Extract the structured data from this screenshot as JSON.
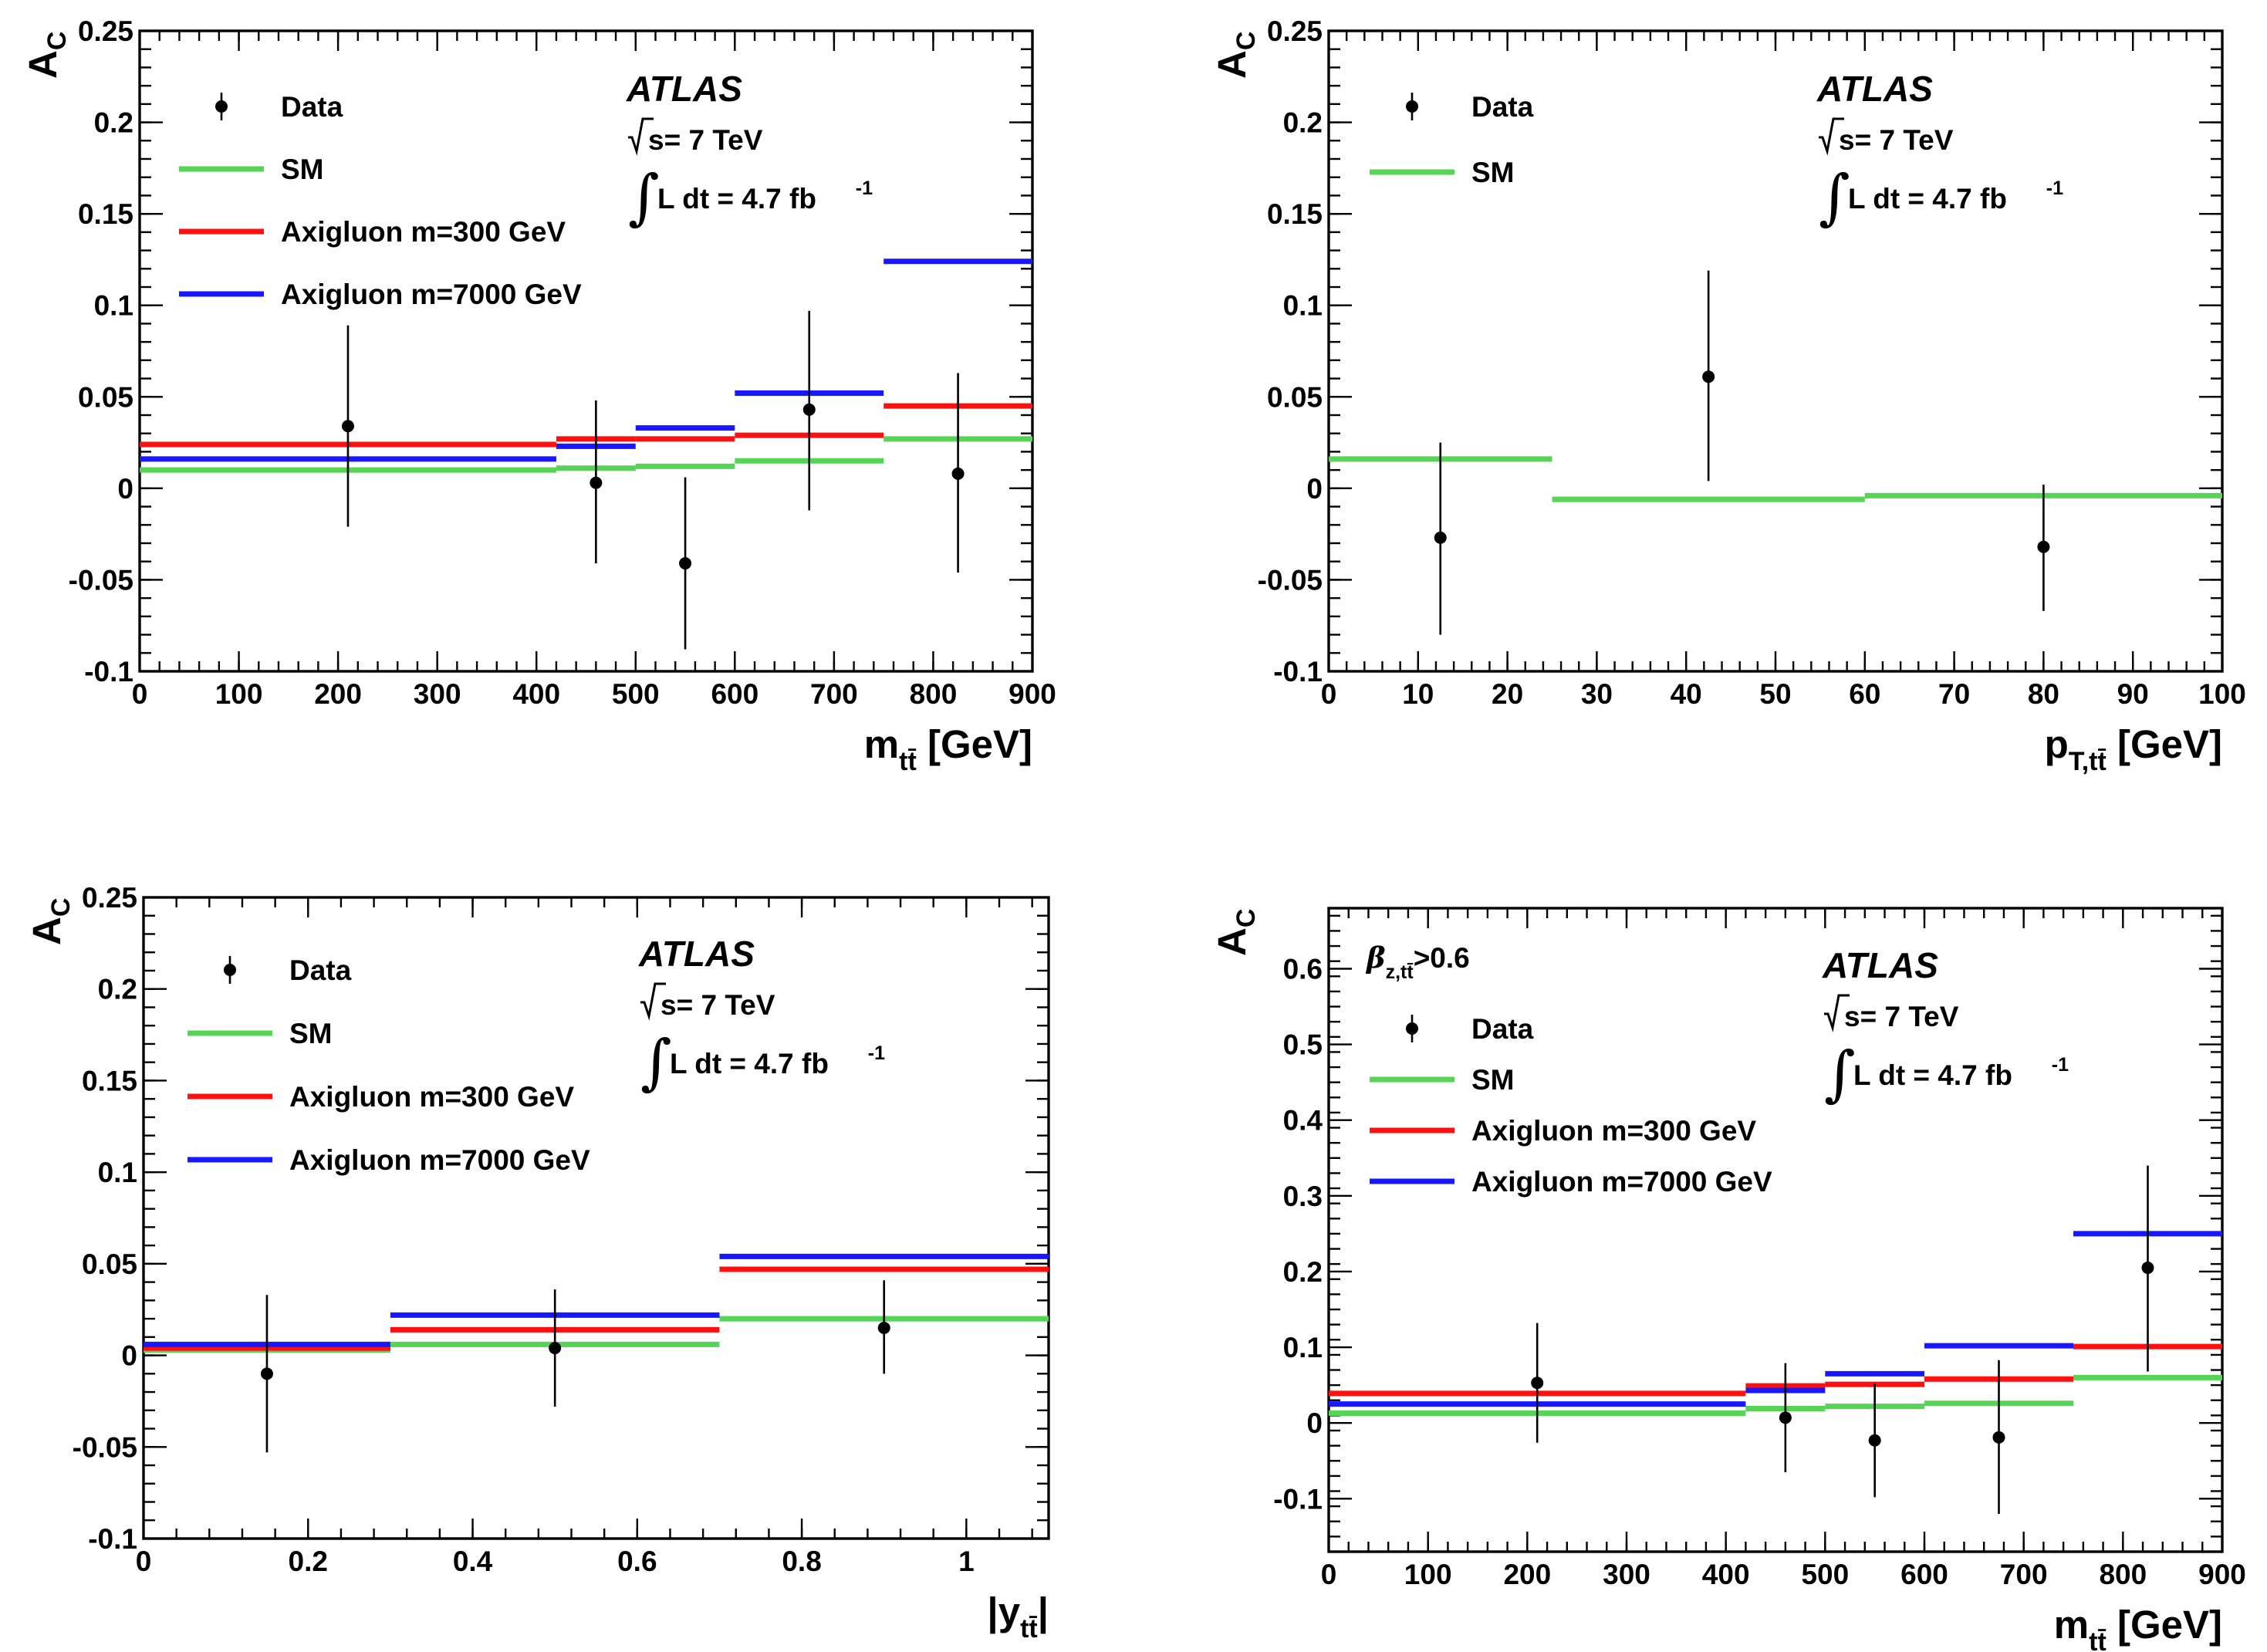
{
  "chart_data": [
    {
      "type": "line",
      "id": "mtt",
      "xlabel": "m",
      "xlabel_sub": "tt̄",
      "xlabel_unit": " [GeV]",
      "ylabel": "A",
      "ylabel_sub": "C",
      "xlim": [
        0,
        900
      ],
      "ylim": [
        -0.1,
        0.25
      ],
      "xticks": [
        0,
        100,
        200,
        300,
        400,
        500,
        600,
        700,
        800,
        900
      ],
      "xtick_labels": [
        "0",
        "100",
        "200",
        "300",
        "400",
        "500",
        "600",
        "700",
        "800",
        "900"
      ],
      "yticks": [
        -0.1,
        -0.05,
        0,
        0.05,
        0.1,
        0.15,
        0.2,
        0.25
      ],
      "ytick_labels": [
        "-0.1",
        "-0.05",
        "0",
        "0.05",
        "0.1",
        "0.15",
        "0.2",
        "0.25"
      ],
      "legend": [
        "Data",
        "SM",
        "Axigluon m=300 GeV",
        "Axigluon m=7000 GeV"
      ],
      "atlas": "ATLAS",
      "energy": "s= 7 TeV",
      "lumi": "L dt = 4.7 fb",
      "lumi_exp": "-1",
      "extra_label": "",
      "extra_label_sub": "",
      "series": [
        {
          "name": "SM",
          "color": "#55d455",
          "bins": [
            [
              0,
              420,
              0.01
            ],
            [
              420,
              500,
              0.011
            ],
            [
              500,
              600,
              0.012
            ],
            [
              600,
              750,
              0.015
            ],
            [
              750,
              900,
              0.027
            ]
          ]
        },
        {
          "name": "Axigluon m=300 GeV",
          "color": "#ff1010",
          "bins": [
            [
              0,
              420,
              0.024
            ],
            [
              420,
              500,
              0.027
            ],
            [
              500,
              600,
              0.027
            ],
            [
              600,
              750,
              0.029
            ],
            [
              750,
              900,
              0.045
            ]
          ]
        },
        {
          "name": "Axigluon m=7000 GeV",
          "color": "#1818ff",
          "bins": [
            [
              0,
              420,
              0.016
            ],
            [
              420,
              500,
              0.023
            ],
            [
              500,
              600,
              0.033
            ],
            [
              600,
              750,
              0.052
            ],
            [
              750,
              900,
              0.124
            ]
          ]
        }
      ],
      "data": [
        {
          "x": 210,
          "y": 0.034,
          "lo": -0.021,
          "hi": 0.089
        },
        {
          "x": 460,
          "y": 0.003,
          "lo": -0.041,
          "hi": 0.048
        },
        {
          "x": 550,
          "y": -0.041,
          "lo": -0.088,
          "hi": 0.006
        },
        {
          "x": 675,
          "y": 0.043,
          "lo": -0.012,
          "hi": 0.097
        },
        {
          "x": 825,
          "y": 0.008,
          "lo": -0.046,
          "hi": 0.063
        }
      ]
    },
    {
      "type": "line",
      "id": "pt",
      "xlabel": "p",
      "xlabel_sub": "T,tt̄",
      "xlabel_unit": " [GeV]",
      "ylabel": "A",
      "ylabel_sub": "C",
      "xlim": [
        0,
        100
      ],
      "ylim": [
        -0.1,
        0.25
      ],
      "xticks": [
        0,
        10,
        20,
        30,
        40,
        50,
        60,
        70,
        80,
        90,
        100
      ],
      "xtick_labels": [
        "0",
        "10",
        "20",
        "30",
        "40",
        "50",
        "60",
        "70",
        "80",
        "90",
        "100"
      ],
      "yticks": [
        -0.1,
        -0.05,
        0,
        0.05,
        0.1,
        0.15,
        0.2,
        0.25
      ],
      "ytick_labels": [
        "-0.1",
        "-0.05",
        "0",
        "0.05",
        "0.1",
        "0.15",
        "0.2",
        "0.25"
      ],
      "legend": [
        "Data",
        "SM"
      ],
      "atlas": "ATLAS",
      "energy": "s= 7 TeV",
      "lumi": "L dt = 4.7 fb",
      "lumi_exp": "-1",
      "extra_label": "",
      "extra_label_sub": "",
      "series": [
        {
          "name": "SM",
          "color": "#55d455",
          "bins": [
            [
              0,
              25,
              0.016
            ],
            [
              25,
              60,
              -0.006
            ],
            [
              60,
              100,
              -0.004
            ]
          ]
        }
      ],
      "data": [
        {
          "x": 12.5,
          "y": -0.027,
          "lo": -0.08,
          "hi": 0.025
        },
        {
          "x": 42.5,
          "y": 0.061,
          "lo": 0.004,
          "hi": 0.119
        },
        {
          "x": 80,
          "y": -0.032,
          "lo": -0.067,
          "hi": 0.002
        }
      ]
    },
    {
      "type": "line",
      "id": "ytt",
      "xlabel": "|y",
      "xlabel_sub": "tt̄",
      "xlabel_unit": "|",
      "ylabel": "A",
      "ylabel_sub": "C",
      "xlim": [
        0,
        1.1
      ],
      "ylim": [
        -0.1,
        0.25
      ],
      "xticks": [
        0,
        0.2,
        0.4,
        0.6,
        0.8,
        1
      ],
      "xtick_labels": [
        "0",
        "0.2",
        "0.4",
        "0.6",
        "0.8",
        "1"
      ],
      "yticks": [
        -0.1,
        -0.05,
        0,
        0.05,
        0.1,
        0.15,
        0.2,
        0.25
      ],
      "ytick_labels": [
        "-0.1",
        "-0.05",
        "0",
        "0.05",
        "0.1",
        "0.15",
        "0.2",
        "0.25"
      ],
      "legend": [
        "Data",
        "SM",
        "Axigluon m=300 GeV",
        "Axigluon m=7000 GeV"
      ],
      "atlas": "ATLAS",
      "energy": "s= 7 TeV",
      "lumi": "L dt = 4.7 fb",
      "lumi_exp": "-1",
      "extra_label": "",
      "extra_label_sub": "",
      "series": [
        {
          "name": "SM",
          "color": "#55d455",
          "bins": [
            [
              0,
              0.3,
              0.003
            ],
            [
              0.3,
              0.7,
              0.006
            ],
            [
              0.7,
              1.1,
              0.02
            ]
          ]
        },
        {
          "name": "Axigluon m=300 GeV",
          "color": "#ff1010",
          "bins": [
            [
              0,
              0.3,
              0.004
            ],
            [
              0.3,
              0.7,
              0.014
            ],
            [
              0.7,
              1.1,
              0.047
            ]
          ]
        },
        {
          "name": "Axigluon m=7000 GeV",
          "color": "#1818ff",
          "bins": [
            [
              0,
              0.3,
              0.006
            ],
            [
              0.3,
              0.7,
              0.022
            ],
            [
              0.7,
              1.1,
              0.054
            ]
          ]
        }
      ],
      "data": [
        {
          "x": 0.15,
          "y": -0.01,
          "lo": -0.053,
          "hi": 0.033
        },
        {
          "x": 0.5,
          "y": 0.004,
          "lo": -0.028,
          "hi": 0.036
        },
        {
          "x": 0.9,
          "y": 0.015,
          "lo": -0.01,
          "hi": 0.041
        }
      ]
    },
    {
      "type": "line",
      "id": "mtt_beta",
      "xlabel": "m",
      "xlabel_sub": "tt̄",
      "xlabel_unit": " [GeV]",
      "ylabel": "A",
      "ylabel_sub": "C",
      "xlim": [
        0,
        900
      ],
      "ylim": [
        -0.17,
        0.68
      ],
      "xticks": [
        0,
        100,
        200,
        300,
        400,
        500,
        600,
        700,
        800,
        900
      ],
      "xtick_labels": [
        "0",
        "100",
        "200",
        "300",
        "400",
        "500",
        "600",
        "700",
        "800",
        "900"
      ],
      "yticks": [
        -0.1,
        0,
        0.1,
        0.2,
        0.3,
        0.4,
        0.5,
        0.6
      ],
      "ytick_labels": [
        "-0.1",
        "0",
        "0.1",
        "0.2",
        "0.3",
        "0.4",
        "0.5",
        "0.6"
      ],
      "legend": [
        "Data",
        "SM",
        "Axigluon m=300 GeV",
        "Axigluon m=7000 GeV"
      ],
      "atlas": "ATLAS",
      "energy": "s= 7 TeV",
      "lumi": "L dt = 4.7 fb",
      "lumi_exp": "-1",
      "extra_label": ">0.6",
      "extra_label_sub": "z,tt̄",
      "series": [
        {
          "name": "SM",
          "color": "#55d455",
          "bins": [
            [
              0,
              420,
              0.013
            ],
            [
              420,
              500,
              0.019
            ],
            [
              500,
              600,
              0.022
            ],
            [
              600,
              750,
              0.026
            ],
            [
              750,
              900,
              0.06
            ]
          ]
        },
        {
          "name": "Axigluon m=300 GeV",
          "color": "#ff1010",
          "bins": [
            [
              0,
              420,
              0.039
            ],
            [
              420,
              500,
              0.049
            ],
            [
              500,
              600,
              0.051
            ],
            [
              600,
              750,
              0.058
            ],
            [
              750,
              900,
              0.101
            ]
          ]
        },
        {
          "name": "Axigluon m=7000 GeV",
          "color": "#1818ff",
          "bins": [
            [
              0,
              420,
              0.025
            ],
            [
              420,
              500,
              0.043
            ],
            [
              500,
              600,
              0.065
            ],
            [
              600,
              750,
              0.102
            ],
            [
              750,
              900,
              0.25
            ]
          ]
        }
      ],
      "data": [
        {
          "x": 210,
          "y": 0.053,
          "lo": -0.026,
          "hi": 0.132
        },
        {
          "x": 460,
          "y": 0.007,
          "lo": -0.065,
          "hi": 0.079
        },
        {
          "x": 550,
          "y": -0.023,
          "lo": -0.098,
          "hi": 0.052
        },
        {
          "x": 675,
          "y": -0.019,
          "lo": -0.12,
          "hi": 0.083
        },
        {
          "x": 825,
          "y": 0.205,
          "lo": 0.068,
          "hi": 0.34
        }
      ]
    }
  ]
}
